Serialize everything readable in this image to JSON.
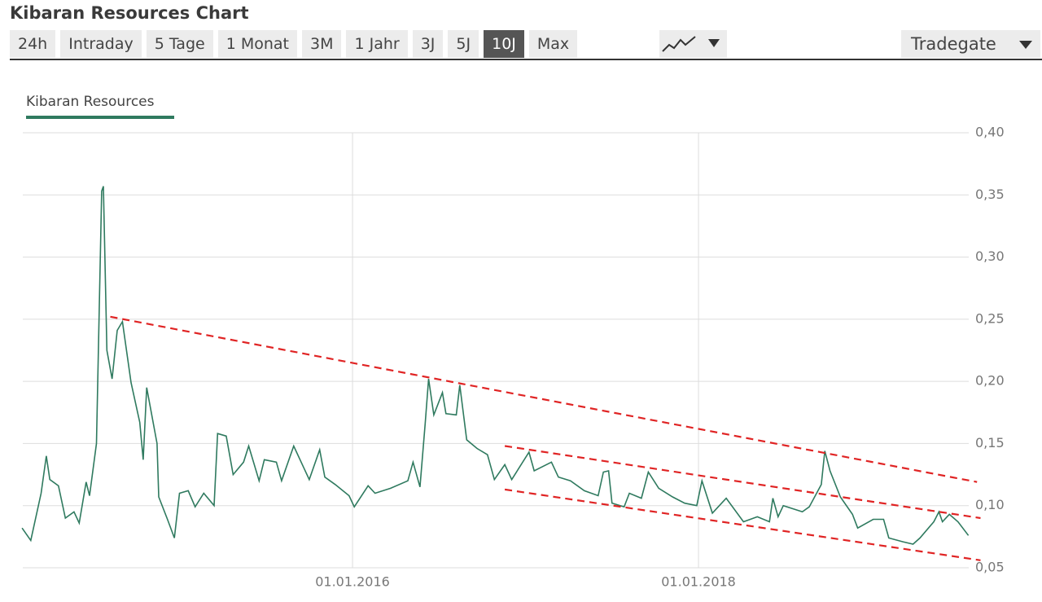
{
  "header": {
    "title": "Kibaran Resources Chart"
  },
  "tabs": [
    "24h",
    "Intraday",
    "5 Tage",
    "1 Monat",
    "3M",
    "1 Jahr",
    "3J",
    "5J",
    "10J",
    "Max"
  ],
  "active_tab_index": 8,
  "exchange": "Tradegate",
  "chart_data": {
    "type": "line",
    "x": [
      2014.09,
      2014.14,
      2014.2,
      2014.23,
      2014.25,
      2014.3,
      2014.34,
      2014.39,
      2014.42,
      2014.46,
      2014.48,
      2014.52,
      2014.55,
      2014.56,
      2014.58,
      2014.61,
      2014.64,
      2014.67,
      2014.72,
      2014.77,
      2014.79,
      2014.81,
      2014.87,
      2014.88,
      2014.93,
      2014.97,
      2015.0,
      2015.05,
      2015.09,
      2015.14,
      2015.2,
      2015.22,
      2015.27,
      2015.31,
      2015.37,
      2015.4,
      2015.46,
      2015.49,
      2015.56,
      2015.59,
      2015.66,
      2015.72,
      2015.75,
      2015.81,
      2015.84,
      2015.9,
      2015.98,
      2016.01,
      2016.09,
      2016.13,
      2016.22,
      2016.32,
      2016.35,
      2016.39,
      2016.42,
      2016.44,
      2016.47,
      2016.52,
      2016.54,
      2016.6,
      2016.62,
      2016.66,
      2016.72,
      2016.78,
      2016.82,
      2016.88,
      2016.92,
      2017.02,
      2017.05,
      2017.15,
      2017.19,
      2017.26,
      2017.34,
      2017.42,
      2017.45,
      2017.48,
      2017.5,
      2017.57,
      2017.6,
      2017.67,
      2017.71,
      2017.77,
      2017.85,
      2017.92,
      2017.99,
      2018.02,
      2018.08,
      2018.16,
      2018.26,
      2018.34,
      2018.41,
      2018.43,
      2018.46,
      2018.49,
      2018.6,
      2018.64,
      2018.71,
      2018.73,
      2018.76,
      2018.82,
      2018.89,
      2018.92,
      2019.01,
      2019.07,
      2019.1,
      2019.18,
      2019.24,
      2019.28,
      2019.36,
      2019.39,
      2019.41,
      2019.45,
      2019.5,
      2019.56
    ],
    "series": [
      {
        "name": "Kibaran Resources",
        "color": "#2f7a5f",
        "values": [
          0.082,
          0.072,
          0.11,
          0.14,
          0.121,
          0.116,
          0.09,
          0.095,
          0.086,
          0.119,
          0.108,
          0.15,
          0.353,
          0.357,
          0.225,
          0.202,
          0.241,
          0.248,
          0.199,
          0.167,
          0.137,
          0.195,
          0.15,
          0.107,
          0.089,
          0.074,
          0.11,
          0.112,
          0.099,
          0.11,
          0.1,
          0.158,
          0.156,
          0.125,
          0.135,
          0.148,
          0.12,
          0.137,
          0.135,
          0.12,
          0.148,
          0.13,
          0.121,
          0.145,
          0.123,
          0.117,
          0.108,
          0.099,
          0.116,
          0.11,
          0.114,
          0.12,
          0.135,
          0.115,
          0.166,
          0.202,
          0.173,
          0.191,
          0.174,
          0.173,
          0.197,
          0.153,
          0.146,
          0.141,
          0.121,
          0.133,
          0.121,
          0.143,
          0.128,
          0.135,
          0.123,
          0.12,
          0.112,
          0.108,
          0.127,
          0.128,
          0.102,
          0.099,
          0.11,
          0.106,
          0.127,
          0.114,
          0.107,
          0.102,
          0.1,
          0.12,
          0.094,
          0.106,
          0.087,
          0.091,
          0.087,
          0.106,
          0.091,
          0.1,
          0.095,
          0.099,
          0.117,
          0.144,
          0.128,
          0.107,
          0.093,
          0.082,
          0.089,
          0.089,
          0.074,
          0.071,
          0.069,
          0.074,
          0.087,
          0.095,
          0.087,
          0.093,
          0.087,
          0.076
        ]
      }
    ],
    "trend_lines": [
      {
        "color": "#e02424",
        "x": [
          2014.6,
          2019.61
        ],
        "values": [
          0.252,
          0.119
        ]
      },
      {
        "color": "#e02424",
        "x": [
          2016.88,
          2019.63
        ],
        "values": [
          0.148,
          0.09
        ]
      },
      {
        "color": "#e02424",
        "x": [
          2016.88,
          2019.63
        ],
        "values": [
          0.113,
          0.056
        ]
      }
    ],
    "xlim": [
      2014.094,
      2019.562
    ],
    "xticks": [
      {
        "value": 2016,
        "label": "01.01.2016"
      },
      {
        "value": 2018,
        "label": "01.01.2018"
      }
    ],
    "ylim": [
      0.05,
      0.4
    ],
    "yticks": [
      {
        "value": 0.05,
        "label": "0,05"
      },
      {
        "value": 0.1,
        "label": "0,10"
      },
      {
        "value": 0.15,
        "label": "0,15"
      },
      {
        "value": 0.2,
        "label": "0,20"
      },
      {
        "value": 0.25,
        "label": "0,25"
      },
      {
        "value": 0.3,
        "label": "0,30"
      },
      {
        "value": 0.35,
        "label": "0,35"
      },
      {
        "value": 0.4,
        "label": "0,40"
      }
    ],
    "grid": true
  }
}
